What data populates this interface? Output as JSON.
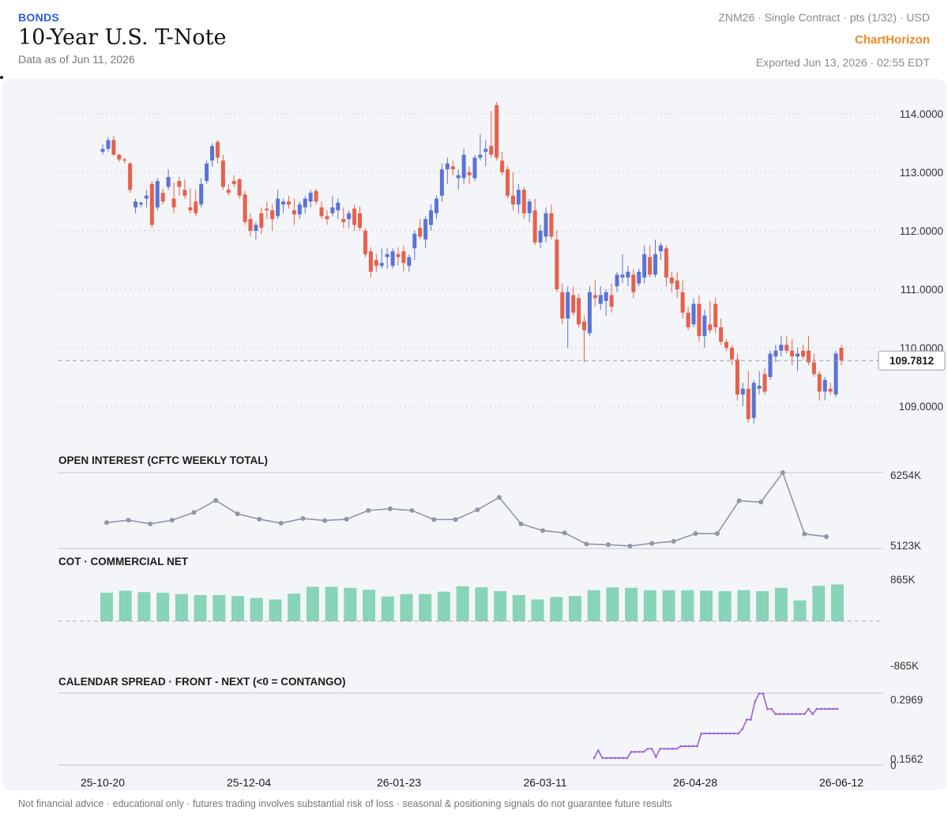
{
  "header": {
    "category": "BONDS",
    "title": "10-Year U.S. T-Note",
    "as_of": "Data as of Jun 11, 2026",
    "contract": "ZNM26 · Single Contract · pts (1/32) · USD",
    "brand": "ChartHorizon",
    "exported": "Exported Jun 13, 2026 · 02:55 EDT"
  },
  "footer": {
    "disclaimer": "Not financial advice · educational only · futures trading involves substantial risk of loss · seasonal & positioning signals do not guarantee future results"
  },
  "colors": {
    "up": "#5a73d8",
    "down": "#e8604a",
    "oi_line": "#8e97a5",
    "cot_bar": "#88d4b7",
    "spread_line": "#9a5fdc"
  },
  "chart_data": [
    {
      "type": "candlestick",
      "x_tick_labels": [
        "25-10-20",
        "25-12-04",
        "26-01-23",
        "26-03-11",
        "26-04-28",
        "26-06-12"
      ],
      "y_ticks": [
        "114.0000",
        "113.0000",
        "112.0000",
        "111.0000",
        "110.0000",
        "109.0000"
      ],
      "ylim": [
        108.65,
        114.2
      ],
      "last_price": 109.7812,
      "last_price_label": "109.7812",
      "ohlc": [
        [
          113.35,
          113.48,
          113.3,
          113.4
        ],
        [
          113.4,
          113.6,
          113.35,
          113.55
        ],
        [
          113.55,
          113.62,
          113.28,
          113.3
        ],
        [
          113.3,
          113.32,
          113.18,
          113.22
        ],
        [
          113.22,
          113.25,
          113.15,
          113.2
        ],
        [
          113.15,
          113.18,
          112.65,
          112.7
        ],
        [
          112.4,
          112.55,
          112.3,
          112.5
        ],
        [
          112.45,
          112.5,
          112.4,
          112.48
        ],
        [
          112.55,
          112.7,
          112.4,
          112.6
        ],
        [
          112.8,
          112.85,
          112.05,
          112.1
        ],
        [
          112.4,
          112.9,
          112.35,
          112.85
        ],
        [
          112.65,
          112.72,
          112.45,
          112.5
        ],
        [
          112.75,
          113.05,
          112.7,
          112.92
        ],
        [
          112.55,
          112.82,
          112.3,
          112.4
        ],
        [
          112.85,
          112.92,
          112.6,
          112.75
        ],
        [
          112.7,
          112.88,
          112.55,
          112.6
        ],
        [
          112.4,
          112.72,
          112.3,
          112.35
        ],
        [
          112.5,
          112.7,
          112.25,
          112.3
        ],
        [
          112.45,
          112.9,
          112.4,
          112.8
        ],
        [
          112.85,
          113.2,
          112.8,
          113.15
        ],
        [
          113.2,
          113.5,
          113.1,
          113.45
        ],
        [
          113.52,
          113.55,
          113.15,
          113.25
        ],
        [
          113.2,
          113.3,
          112.7,
          112.75
        ],
        [
          112.7,
          112.8,
          112.6,
          112.65
        ],
        [
          112.85,
          112.95,
          112.75,
          112.8
        ],
        [
          112.88,
          112.9,
          112.55,
          112.6
        ],
        [
          112.62,
          112.68,
          112.1,
          112.15
        ],
        [
          112.2,
          112.3,
          111.9,
          112.0
        ],
        [
          112.0,
          112.15,
          111.85,
          112.1
        ],
        [
          112.3,
          112.4,
          111.95,
          112.05
        ],
        [
          112.38,
          112.5,
          112.2,
          112.35
        ],
        [
          112.35,
          112.45,
          112.0,
          112.2
        ],
        [
          112.25,
          112.7,
          112.2,
          112.55
        ],
        [
          112.45,
          112.55,
          112.3,
          112.5
        ],
        [
          112.5,
          112.6,
          112.38,
          112.45
        ],
        [
          112.35,
          112.55,
          112.1,
          112.28
        ],
        [
          112.28,
          112.5,
          112.2,
          112.45
        ],
        [
          112.4,
          112.6,
          112.3,
          112.55
        ],
        [
          112.5,
          112.7,
          112.4,
          112.65
        ],
        [
          112.68,
          112.72,
          112.45,
          112.5
        ],
        [
          112.4,
          112.5,
          112.2,
          112.25
        ],
        [
          112.25,
          112.35,
          112.1,
          112.2
        ],
        [
          112.3,
          112.6,
          112.25,
          112.4
        ],
        [
          112.35,
          112.55,
          112.2,
          112.48
        ],
        [
          112.2,
          112.4,
          112.05,
          112.15
        ],
        [
          112.2,
          112.35,
          112.05,
          112.3
        ],
        [
          112.38,
          112.45,
          112.0,
          112.1
        ],
        [
          112.3,
          112.42,
          112.0,
          112.05
        ],
        [
          112.0,
          112.05,
          111.55,
          111.6
        ],
        [
          111.65,
          111.72,
          111.2,
          111.3
        ],
        [
          111.5,
          111.6,
          111.3,
          111.4
        ],
        [
          111.4,
          111.7,
          111.35,
          111.45
        ],
        [
          111.55,
          111.7,
          111.35,
          111.6
        ],
        [
          111.4,
          111.7,
          111.35,
          111.65
        ],
        [
          111.6,
          111.72,
          111.4,
          111.55
        ],
        [
          111.65,
          111.75,
          111.3,
          111.45
        ],
        [
          111.4,
          111.6,
          111.3,
          111.55
        ],
        [
          111.7,
          112.0,
          111.5,
          111.95
        ],
        [
          112.05,
          112.2,
          111.85,
          111.9
        ],
        [
          111.85,
          112.25,
          111.7,
          112.2
        ],
        [
          112.1,
          112.45,
          112.0,
          112.35
        ],
        [
          112.3,
          112.6,
          112.2,
          112.55
        ],
        [
          112.6,
          113.15,
          112.5,
          113.05
        ],
        [
          113.05,
          113.25,
          112.8,
          113.15
        ],
        [
          113.1,
          113.2,
          112.95,
          113.05
        ],
        [
          112.9,
          113.05,
          112.7,
          112.95
        ],
        [
          112.9,
          113.4,
          112.8,
          113.3
        ],
        [
          113.0,
          113.1,
          112.8,
          112.95
        ],
        [
          112.9,
          113.3,
          112.85,
          113.25
        ],
        [
          113.25,
          113.65,
          113.2,
          113.3
        ],
        [
          113.35,
          113.55,
          113.1,
          113.4
        ],
        [
          113.45,
          114.05,
          113.25,
          113.3
        ],
        [
          114.15,
          114.2,
          113.2,
          113.25
        ],
        [
          113.2,
          113.35,
          112.95,
          113.0
        ],
        [
          113.05,
          113.1,
          112.55,
          112.6
        ],
        [
          112.6,
          113.0,
          112.35,
          112.45
        ],
        [
          112.45,
          112.8,
          112.3,
          112.7
        ],
        [
          112.7,
          112.75,
          112.2,
          112.3
        ],
        [
          112.3,
          112.55,
          112.15,
          112.5
        ],
        [
          112.35,
          112.55,
          111.75,
          111.8
        ],
        [
          111.8,
          112.1,
          111.7,
          112.0
        ],
        [
          111.9,
          112.4,
          111.8,
          112.3
        ],
        [
          112.3,
          112.45,
          111.85,
          111.9
        ],
        [
          111.85,
          112.0,
          110.95,
          111.0
        ],
        [
          110.95,
          111.1,
          110.4,
          110.5
        ],
        [
          110.5,
          111.05,
          110.0,
          110.95
        ],
        [
          110.9,
          111.05,
          110.55,
          110.6
        ],
        [
          110.85,
          110.92,
          110.35,
          110.4
        ],
        [
          110.45,
          110.55,
          109.75,
          110.3
        ],
        [
          110.25,
          111.05,
          110.2,
          110.95
        ],
        [
          110.9,
          111.15,
          110.7,
          110.85
        ],
        [
          110.75,
          111.05,
          110.65,
          110.9
        ],
        [
          110.8,
          111.0,
          110.55,
          110.95
        ],
        [
          110.9,
          111.1,
          110.6,
          110.7
        ],
        [
          111.05,
          111.3,
          110.95,
          111.25
        ],
        [
          111.2,
          111.6,
          111.1,
          111.25
        ],
        [
          111.2,
          111.4,
          111.05,
          111.3
        ],
        [
          111.25,
          111.35,
          110.85,
          110.95
        ],
        [
          111.1,
          111.35,
          111.05,
          111.3
        ],
        [
          111.2,
          111.75,
          111.1,
          111.6
        ],
        [
          111.55,
          111.75,
          111.2,
          111.25
        ],
        [
          111.25,
          111.85,
          111.2,
          111.6
        ],
        [
          111.65,
          111.8,
          111.5,
          111.75
        ],
        [
          111.7,
          111.75,
          111.05,
          111.2
        ],
        [
          111.2,
          111.3,
          110.95,
          111.1
        ],
        [
          111.15,
          111.3,
          110.85,
          111.0
        ],
        [
          110.95,
          111.15,
          110.5,
          110.6
        ],
        [
          110.6,
          110.7,
          110.3,
          110.35
        ],
        [
          110.4,
          110.85,
          110.35,
          110.75
        ],
        [
          110.75,
          110.9,
          110.1,
          110.2
        ],
        [
          110.2,
          110.65,
          110.0,
          110.55
        ],
        [
          110.4,
          110.8,
          110.25,
          110.3
        ],
        [
          110.75,
          110.85,
          110.25,
          110.35
        ],
        [
          110.35,
          110.5,
          110.05,
          110.1
        ],
        [
          110.1,
          110.15,
          109.95,
          110.0
        ],
        [
          110.0,
          110.05,
          109.7,
          109.8
        ],
        [
          109.8,
          109.9,
          109.1,
          109.2
        ],
        [
          109.2,
          109.4,
          109.0,
          109.3
        ],
        [
          109.3,
          109.6,
          108.72,
          108.78
        ],
        [
          108.8,
          109.45,
          108.7,
          109.4
        ],
        [
          109.3,
          109.6,
          109.2,
          109.35
        ],
        [
          109.55,
          109.65,
          109.2,
          109.25
        ],
        [
          109.5,
          109.95,
          109.45,
          109.9
        ],
        [
          109.85,
          110.05,
          109.75,
          109.95
        ],
        [
          109.95,
          110.2,
          109.85,
          110.05
        ],
        [
          110.05,
          110.2,
          109.9,
          109.95
        ],
        [
          109.95,
          110.15,
          109.7,
          109.85
        ],
        [
          109.85,
          110.0,
          109.6,
          109.9
        ],
        [
          109.95,
          110.05,
          109.8,
          109.85
        ],
        [
          109.95,
          110.2,
          109.7,
          109.75
        ],
        [
          109.75,
          109.9,
          109.5,
          109.55
        ],
        [
          109.55,
          109.6,
          109.1,
          109.25
        ],
        [
          109.25,
          109.5,
          109.1,
          109.45
        ],
        [
          109.3,
          109.4,
          109.2,
          109.25
        ],
        [
          109.2,
          109.95,
          109.15,
          109.9
        ],
        [
          110.0,
          110.05,
          109.7,
          109.78
        ]
      ]
    },
    {
      "type": "line",
      "title": "OPEN INTEREST (CFTC WEEKLY TOTAL)",
      "y_tick_labels": [
        "6254K",
        "5123K"
      ],
      "ylim": [
        5123,
        6254
      ],
      "values": [
        5510,
        5545,
        5490,
        5545,
        5660,
        5840,
        5640,
        5560,
        5500,
        5570,
        5540,
        5560,
        5690,
        5715,
        5690,
        5555,
        5555,
        5700,
        5885,
        5490,
        5390,
        5355,
        5190,
        5180,
        5160,
        5200,
        5230,
        5345,
        5345,
        5835,
        5815,
        6254,
        5340,
        5300
      ]
    },
    {
      "type": "bar",
      "title": "COT · COMMERCIAL NET",
      "y_tick_labels": [
        "865K",
        "-865K"
      ],
      "ylim": [
        -865,
        865
      ],
      "values": [
        590,
        630,
        600,
        590,
        560,
        540,
        540,
        520,
        480,
        450,
        570,
        710,
        710,
        690,
        650,
        510,
        560,
        560,
        610,
        720,
        700,
        620,
        540,
        450,
        500,
        520,
        640,
        700,
        690,
        640,
        640,
        640,
        630,
        620,
        640,
        620,
        690,
        430,
        730,
        760
      ]
    },
    {
      "type": "line",
      "title": "CALENDAR SPREAD · FRONT - NEXT (<0 = CONTANGO)",
      "y_tick_labels": [
        "0.2969",
        "0.1562",
        "0"
      ],
      "ylim": [
        0.1562,
        0.2969
      ],
      "values": [
        0.17,
        0.185,
        0.17,
        0.17,
        0.17,
        0.17,
        0.17,
        0.17,
        0.17,
        0.182,
        0.182,
        0.182,
        0.182,
        0.188,
        0.188,
        0.172,
        0.188,
        0.188,
        0.188,
        0.188,
        0.188,
        0.193,
        0.193,
        0.193,
        0.193,
        0.193,
        0.218,
        0.218,
        0.218,
        0.218,
        0.218,
        0.218,
        0.218,
        0.218,
        0.218,
        0.218,
        0.227,
        0.245,
        0.245,
        0.28,
        0.296,
        0.296,
        0.266,
        0.266,
        0.256,
        0.256,
        0.256,
        0.256,
        0.256,
        0.256,
        0.256,
        0.256,
        0.266,
        0.256,
        0.266,
        0.266,
        0.266,
        0.266,
        0.266,
        0.266
      ]
    }
  ]
}
